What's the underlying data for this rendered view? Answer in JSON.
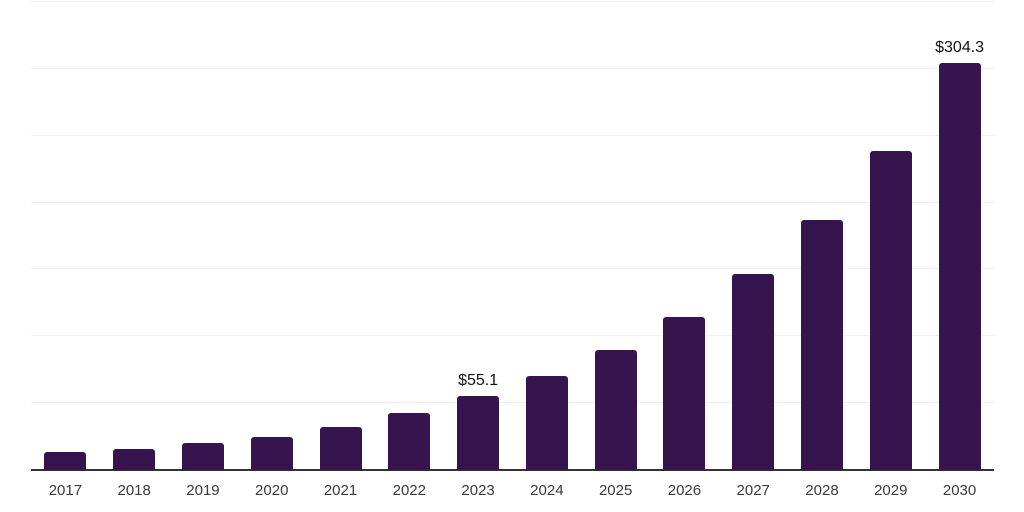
{
  "chart_data": {
    "type": "bar",
    "categories": [
      "2017",
      "2018",
      "2019",
      "2020",
      "2021",
      "2022",
      "2023",
      "2024",
      "2025",
      "2026",
      "2027",
      "2028",
      "2029",
      "2030"
    ],
    "values": [
      13.1,
      15.6,
      20.0,
      24.8,
      32.2,
      42.7,
      55.1,
      70.3,
      89.8,
      114.7,
      146.4,
      186.9,
      238.6,
      304.3
    ],
    "labeled_points": [
      {
        "category": "2023",
        "label": "$55.1"
      },
      {
        "category": "2030",
        "label": "$304.3"
      }
    ],
    "title": "",
    "xlabel": "",
    "ylabel": "",
    "ylim": [
      0,
      350
    ],
    "gridline_step": 50,
    "grid": "horizontal-only",
    "legend": "none",
    "y_tick_labels_visible": false,
    "colors": {
      "bar": "#36154E",
      "axis_line": "#333333",
      "gridline": "#F1F1F1",
      "tick_label": "#3A3A3A",
      "data_label": "#111111",
      "background": "#FFFFFF"
    }
  }
}
